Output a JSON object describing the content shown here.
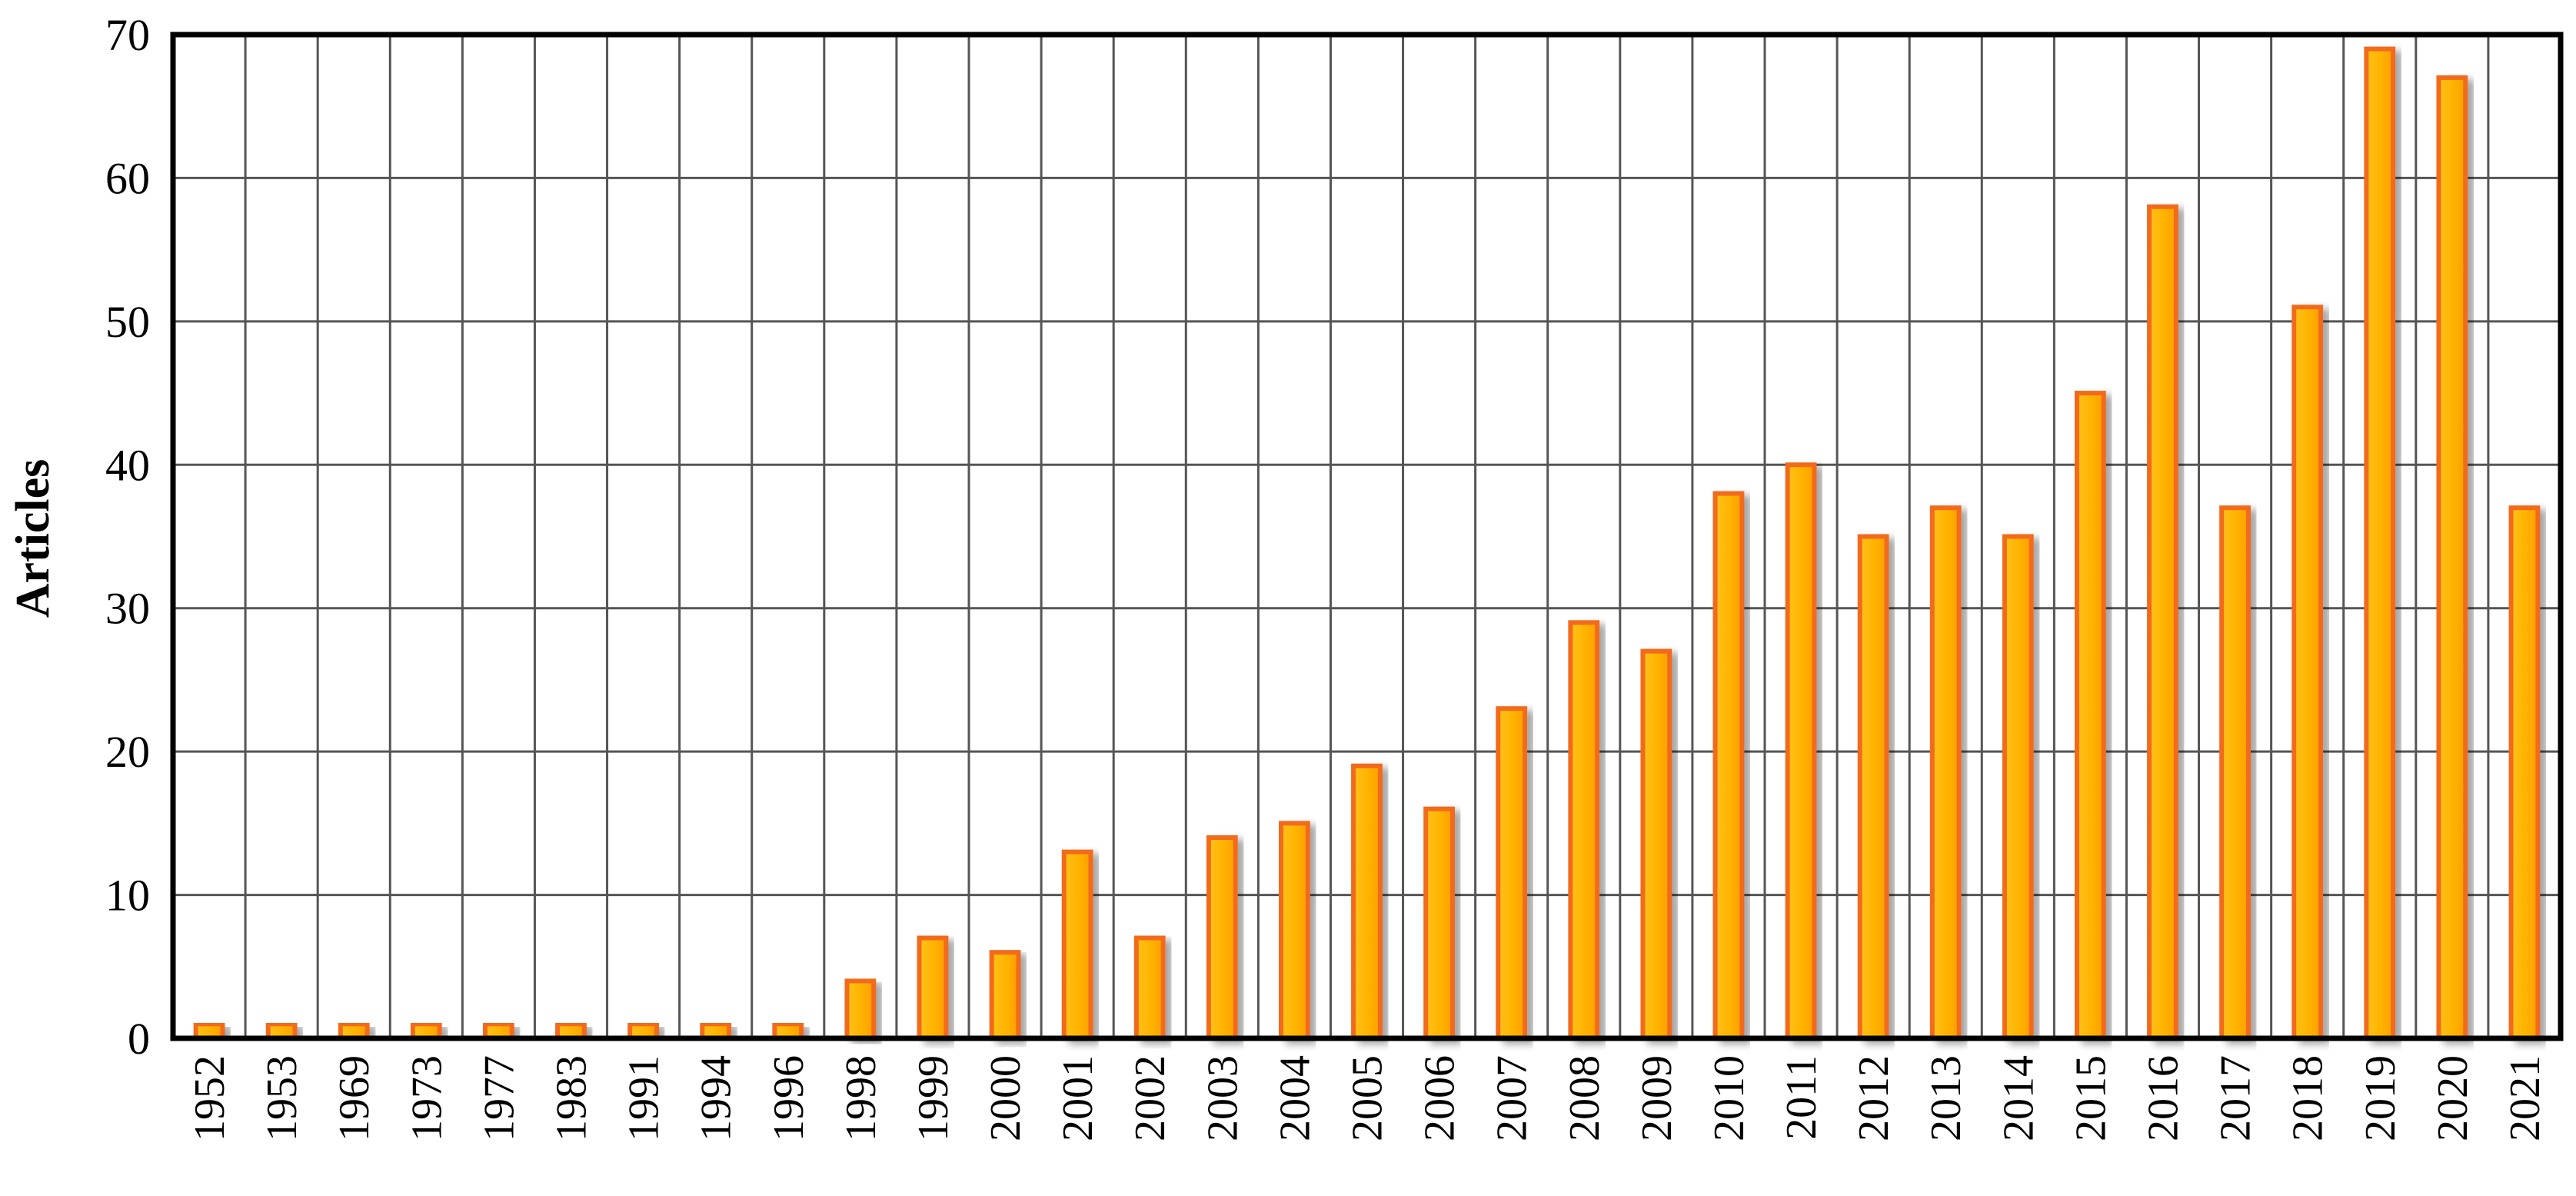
{
  "chart_data": {
    "type": "bar",
    "title": "",
    "xlabel": "",
    "ylabel": "Articles",
    "ylim": [
      0,
      70
    ],
    "yticks": [
      0,
      10,
      20,
      30,
      40,
      50,
      60,
      70
    ],
    "grid": true,
    "legend": "none",
    "categories": [
      "1952",
      "1953",
      "1969",
      "1973",
      "1977",
      "1983",
      "1991",
      "1994",
      "1996",
      "1998",
      "1999",
      "2000",
      "2001",
      "2002",
      "2003",
      "2004",
      "2005",
      "2006",
      "2007",
      "2008",
      "2009",
      "2010",
      "2011",
      "2012",
      "2013",
      "2014",
      "2015",
      "2016",
      "2017",
      "2018",
      "2019",
      "2020",
      "2021"
    ],
    "values": [
      1,
      1,
      1,
      1,
      1,
      1,
      1,
      1,
      1,
      4,
      7,
      6,
      13,
      7,
      14,
      15,
      19,
      16,
      23,
      29,
      27,
      38,
      40,
      35,
      37,
      35,
      45,
      58,
      37,
      51,
      69,
      67,
      37
    ],
    "colors": {
      "bar_fill": "#FFB300",
      "bar_edge": "#F26A1B",
      "grid": "#555555",
      "frame": "#000000"
    }
  }
}
